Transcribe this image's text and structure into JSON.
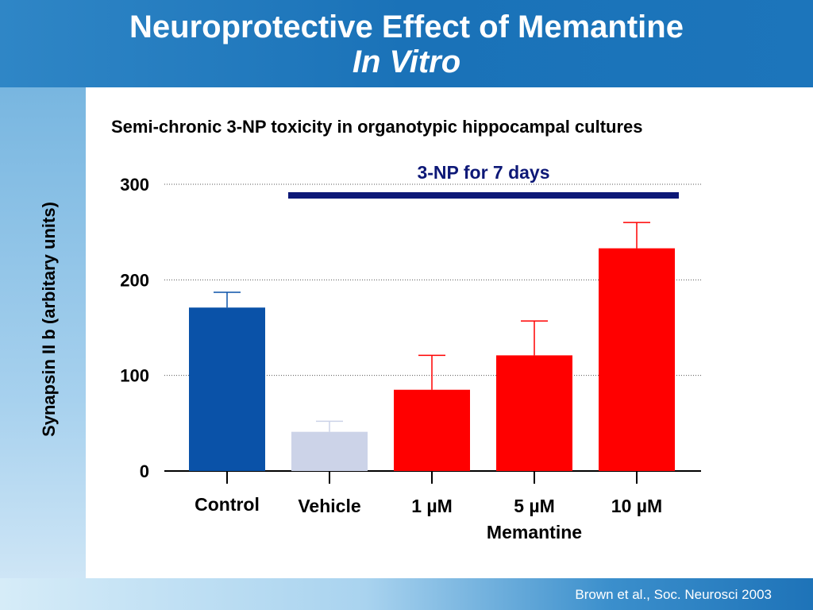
{
  "slide": {
    "title_line1": "Neuroprotective Effect of Memantine",
    "title_line2": "In Vitro",
    "citation": "Brown et al., Soc. Neurosci 2003"
  },
  "chart_data": {
    "type": "bar",
    "title": "Semi-chronic 3-NP toxicity in organotypic hippocampal cultures",
    "ylabel": "Synapsin II b (arbitary units)",
    "xlabel": "",
    "ylim": [
      0,
      300
    ],
    "yticks": [
      0,
      100,
      200,
      300
    ],
    "grid": true,
    "categories": [
      "Control",
      "Vehicle",
      "1 µM",
      "5 µM",
      "10 µM"
    ],
    "values": [
      171,
      41,
      85,
      121,
      233
    ],
    "error_upper": [
      187,
      52,
      121,
      157,
      260
    ],
    "group_label": "Memantine",
    "treatment_bar_label": "3-NP for 7 days",
    "colors": {
      "control": "#0a52a8",
      "vehicle": "#ccd3e8",
      "memantine": "#ff0000",
      "treatment_bar": "#0d1877",
      "treatment_label": "#0d1877",
      "error_bar_control": "#0a52a8",
      "error_bar_vehicle": "#ccd3e8",
      "error_bar_memantine": "#ff0000"
    }
  }
}
